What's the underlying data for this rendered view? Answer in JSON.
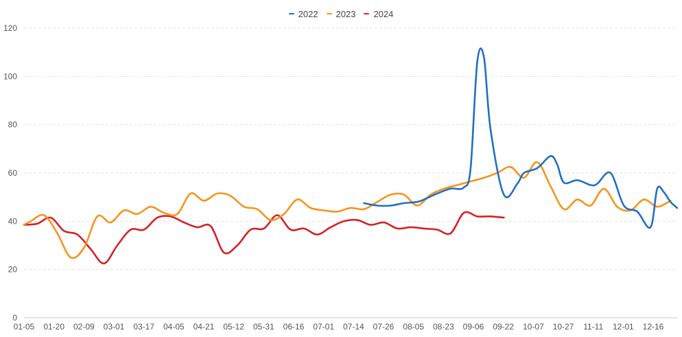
{
  "chart_data": {
    "type": "line",
    "title": "",
    "xlabel": "",
    "ylabel": "",
    "ylim": [
      0,
      120
    ],
    "y_ticks": [
      0,
      20,
      40,
      60,
      80,
      100,
      120
    ],
    "grid": "horizontal dashed",
    "legend_position": "top-center",
    "x_tick_labels": [
      "01-05",
      "01-20",
      "02-09",
      "03-01",
      "03-17",
      "04-05",
      "04-21",
      "05-12",
      "05-31",
      "06-16",
      "07-01",
      "07-14",
      "07-26",
      "08-05",
      "08-23",
      "09-06",
      "09-22",
      "10-07",
      "10-27",
      "11-11",
      "12-01",
      "12-16"
    ],
    "x_domain": [
      1,
      99
    ],
    "series": [
      {
        "name": "2022",
        "color": "#1f6fc5",
        "x": [
          52,
          54,
          56,
          58,
          60,
          61,
          63,
          65,
          67,
          68,
          69,
          70,
          71,
          73,
          75,
          76,
          78,
          80,
          81,
          82,
          84,
          86,
          87,
          89,
          91,
          93,
          95,
          96,
          97,
          98,
          99
        ],
        "y": [
          47.5,
          46.5,
          46.5,
          47.5,
          48,
          49,
          51.5,
          53.5,
          54,
          62,
          106,
          108,
          78,
          51,
          55.5,
          60,
          62,
          67,
          63.5,
          56,
          57,
          55,
          55.5,
          60,
          46.5,
          44,
          37.5,
          53.5,
          52,
          48,
          45.5
        ]
      },
      {
        "name": "2023",
        "color": "#f7941d",
        "x": [
          1,
          2,
          4,
          6,
          8,
          10,
          12,
          14,
          16,
          18,
          20,
          22,
          24,
          26,
          28,
          30,
          32,
          34,
          36,
          38,
          40,
          42,
          44,
          46,
          48,
          50,
          52,
          54,
          56,
          58,
          60,
          62,
          64,
          66,
          68,
          70,
          72,
          74,
          76,
          78,
          80,
          82,
          84,
          86,
          88,
          90,
          92,
          94,
          96,
          98
        ],
        "y": [
          38.5,
          40,
          42.5,
          35,
          25,
          29,
          42,
          39.5,
          44.5,
          43,
          46,
          43.5,
          43,
          51.5,
          48.5,
          51.5,
          50.5,
          46,
          45,
          40.5,
          43,
          49,
          45.5,
          44.5,
          44,
          45.5,
          45,
          48,
          51,
          51,
          46.5,
          51,
          53.5,
          55,
          56.5,
          58,
          60,
          62.5,
          58,
          64.5,
          54.5,
          45,
          49,
          46.5,
          53.5,
          46,
          44.5,
          49,
          46,
          48.5
        ]
      },
      {
        "name": "2024",
        "color": "#d62027",
        "x": [
          1,
          3,
          5,
          7,
          9,
          11,
          13,
          15,
          17,
          19,
          21,
          23,
          25,
          27,
          29,
          31,
          33,
          35,
          37,
          39,
          41,
          43,
          45,
          47,
          49,
          51,
          53,
          55,
          57,
          59,
          61,
          63,
          65,
          67,
          69,
          71,
          73
        ],
        "y": [
          38.5,
          39,
          41.5,
          36,
          34.5,
          28.5,
          22.5,
          30,
          36.5,
          36.5,
          41.5,
          42,
          39.5,
          37.5,
          38,
          27,
          30,
          36.5,
          37,
          42.5,
          36.5,
          37,
          34.5,
          37.5,
          40,
          40.5,
          38.5,
          39.5,
          37,
          37.5,
          37,
          36.5,
          35,
          43.5,
          42,
          42,
          41.5
        ]
      }
    ]
  }
}
